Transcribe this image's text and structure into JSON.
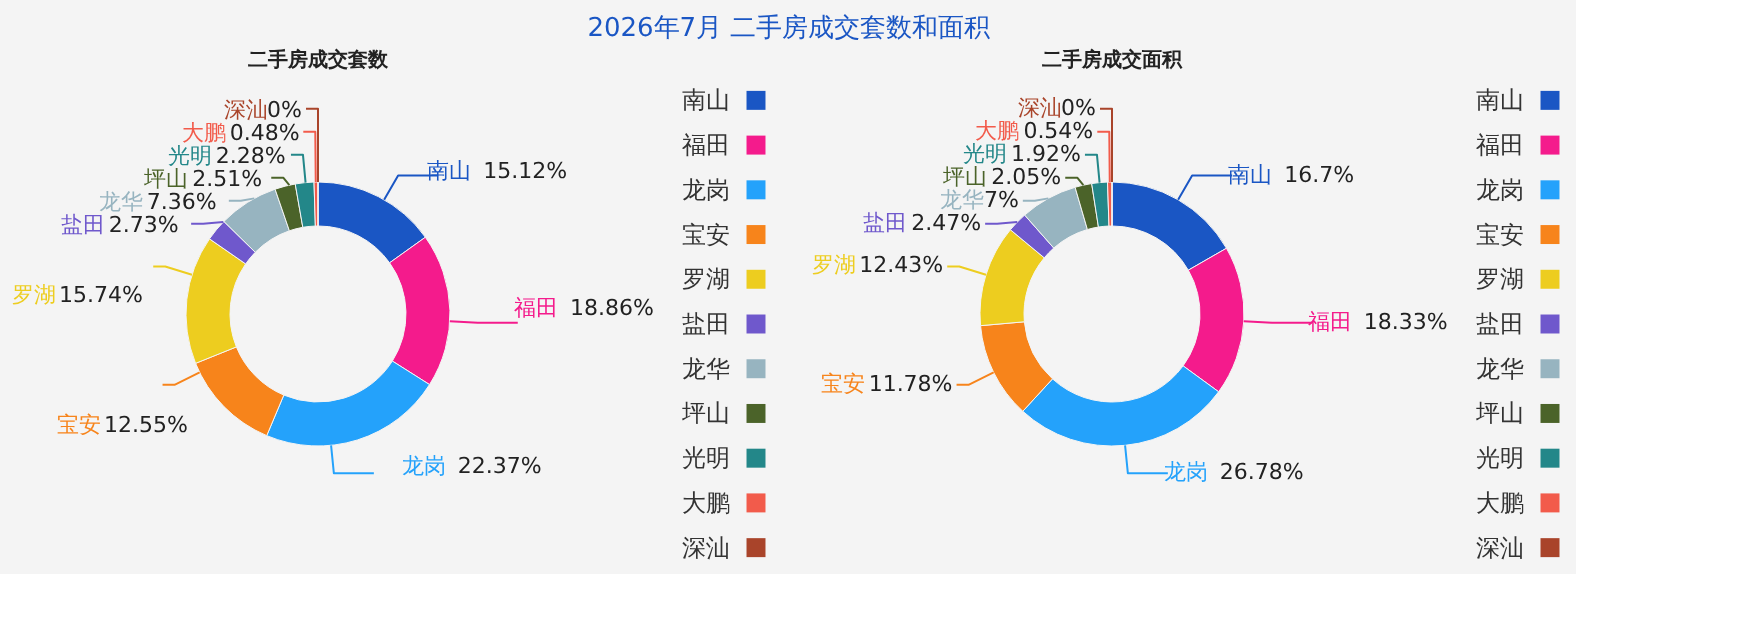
{
  "chart_data": [
    {
      "type": "donut",
      "title": "二手房成交套数",
      "annotations": [
        "2026年7月 二手房成交套数和面积"
      ],
      "categories": [
        "南山",
        "福田",
        "龙岗",
        "宝安",
        "罗湖",
        "盐田",
        "龙华",
        "坪山",
        "光明",
        "大鹏",
        "深汕"
      ],
      "values": [
        15.12,
        18.86,
        22.37,
        12.55,
        15.74,
        2.73,
        7.36,
        2.51,
        2.28,
        0.48,
        0
      ],
      "value_labels": [
        "15.12%",
        "18.86%",
        "22.37%",
        "12.55%",
        "15.74%",
        "2.73%",
        "7.36%",
        "2.51%",
        "2.28%",
        "0.48%",
        "0%"
      ],
      "colors": [
        "#1a56c4",
        "#f41b8c",
        "#24a2fb",
        "#f7841b",
        "#edcd1f",
        "#6f58cc",
        "#97b4c0",
        "#4b6329",
        "#238789",
        "#f25b4b",
        "#a9442a"
      ],
      "legend": "right"
    },
    {
      "type": "donut",
      "title": "二手房成交面积",
      "categories": [
        "南山",
        "福田",
        "龙岗",
        "宝安",
        "罗湖",
        "盐田",
        "龙华",
        "坪山",
        "光明",
        "大鹏",
        "深汕"
      ],
      "values": [
        16.7,
        18.33,
        26.78,
        11.78,
        12.43,
        2.47,
        7,
        2.05,
        1.92,
        0.54,
        0
      ],
      "value_labels": [
        "16.7%",
        "18.33%",
        "26.78%",
        "11.78%",
        "12.43%",
        "2.47%",
        "7%",
        "2.05%",
        "1.92%",
        "0.54%",
        "0%"
      ],
      "colors": [
        "#1a56c4",
        "#f41b8c",
        "#24a2fb",
        "#f7841b",
        "#edcd1f",
        "#6f58cc",
        "#97b4c0",
        "#4b6329",
        "#238789",
        "#f25b4b",
        "#a9442a"
      ],
      "legend": "right"
    }
  ]
}
